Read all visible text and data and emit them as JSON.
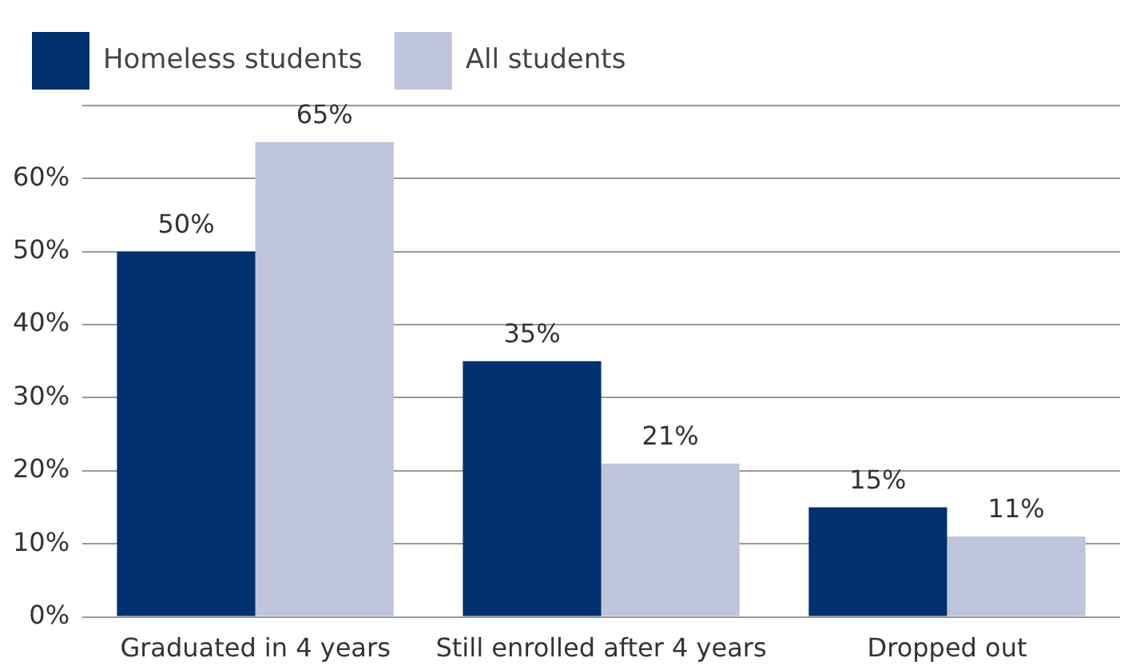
{
  "chart_data": {
    "type": "bar",
    "categories": [
      "Graduated in 4 years",
      "Still enrolled after 4 years",
      "Dropped out"
    ],
    "series": [
      {
        "name": "Homeless students",
        "color": "#00306e",
        "values": [
          50,
          35,
          15
        ],
        "value_labels": [
          "50%",
          "35%",
          "15%"
        ]
      },
      {
        "name": "All students",
        "color": "#bfc4dc",
        "values": [
          65,
          21,
          11
        ],
        "value_labels": [
          "65%",
          "21%",
          "11%"
        ]
      }
    ],
    "ylim": [
      0,
      70
    ],
    "yticks": [
      {
        "value": 0,
        "label": "0%"
      },
      {
        "value": 10,
        "label": "10%"
      },
      {
        "value": 20,
        "label": "20%"
      },
      {
        "value": 30,
        "label": "30%"
      },
      {
        "value": 40,
        "label": "40%"
      },
      {
        "value": 50,
        "label": "50%"
      },
      {
        "value": 60,
        "label": "60%"
      },
      {
        "value": 70,
        "label": null
      }
    ],
    "grid": "y",
    "legend": "top left"
  }
}
